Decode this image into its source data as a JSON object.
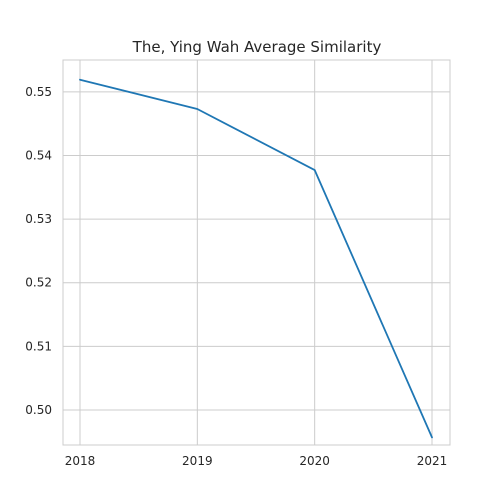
{
  "chart_data": {
    "type": "line",
    "title": "The, Ying Wah Average Similarity",
    "xlabel": "",
    "ylabel": "",
    "x": [
      "2018",
      "2019",
      "2020",
      "2021"
    ],
    "series": [
      {
        "values": [
          0.5519,
          0.5473,
          0.5377,
          0.4957
        ],
        "color": "#1f77b4"
      }
    ],
    "xlim": [
      "2018",
      "2021"
    ],
    "ylim": [
      0.4945,
      0.555
    ],
    "yticks": [
      "0.50",
      "0.51",
      "0.52",
      "0.53",
      "0.54",
      "0.55"
    ],
    "grid": true,
    "legend": "none"
  }
}
